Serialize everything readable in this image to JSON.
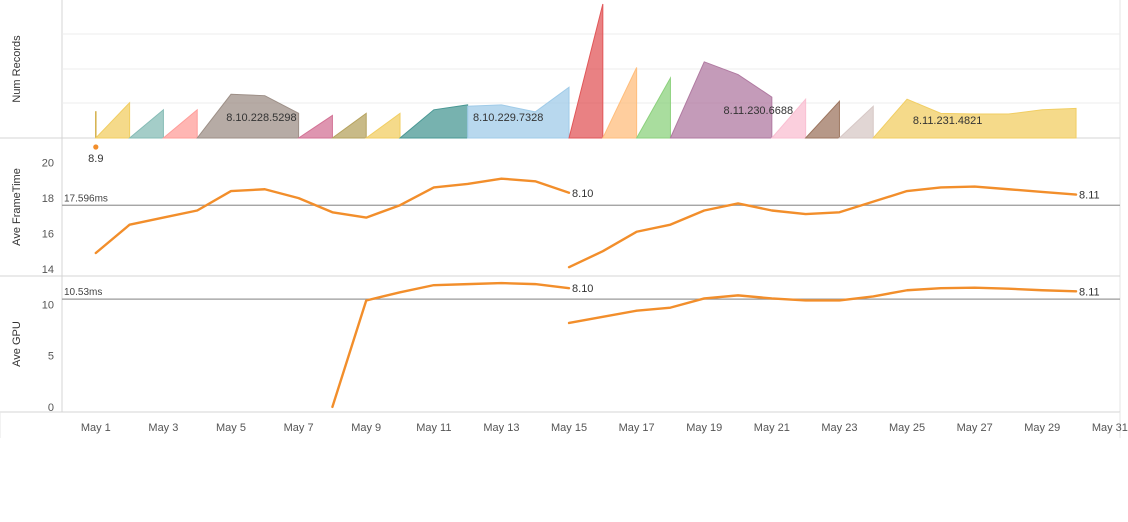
{
  "colors": {
    "line": "#f28e2b",
    "refline": "#9a9a9a",
    "grid": "#ececec",
    "frame": "#d4d4d4"
  },
  "chart_data": [
    {
      "id": "num-records",
      "type": "area",
      "ylabel": "Num Records",
      "x_unit": "day of May",
      "ylim": [
        0,
        190
      ],
      "series": [
        {
          "name": "8.9",
          "color": "#f28e2b",
          "points": [
            [
              1,
              9
            ]
          ],
          "style": "dot"
        },
        {
          "color": "#d4b04a",
          "points": [
            [
              1,
              38
            ]
          ],
          "style": "spike"
        },
        {
          "color": "#f1ce63",
          "points": [
            [
              1,
              0
            ],
            [
              2,
              50
            ]
          ]
        },
        {
          "color": "#86bcb6",
          "points": [
            [
              2,
              0
            ],
            [
              3,
              40
            ]
          ]
        },
        {
          "color": "#ff9d9a",
          "points": [
            [
              3,
              0
            ],
            [
              4,
              40
            ]
          ]
        },
        {
          "name": "8.10.228.5298",
          "color": "#9d8f87",
          "points": [
            [
              4,
              0
            ],
            [
              5,
              62
            ],
            [
              6,
              60
            ],
            [
              7,
              35
            ]
          ]
        },
        {
          "color": "#d37295",
          "points": [
            [
              7,
              0
            ],
            [
              8,
              32
            ]
          ]
        },
        {
          "color": "#b6a35f",
          "points": [
            [
              8,
              0
            ],
            [
              9,
              35
            ]
          ]
        },
        {
          "color": "#f1ce63",
          "points": [
            [
              9,
              0
            ],
            [
              10,
              35
            ]
          ]
        },
        {
          "color": "#499894",
          "points": [
            [
              10,
              0
            ],
            [
              11,
              40
            ],
            [
              12,
              47
            ]
          ]
        },
        {
          "name": "8.10.229.7328",
          "color": "#a0cbe8",
          "points": [
            [
              12,
              0
            ],
            [
              12,
              45
            ],
            [
              13,
              47
            ],
            [
              14,
              37
            ],
            [
              15,
              72
            ]
          ]
        },
        {
          "color": "#e15759",
          "points": [
            [
              15,
              0
            ],
            [
              16,
              190
            ]
          ]
        },
        {
          "color": "#ffbe7d",
          "points": [
            [
              16,
              0
            ],
            [
              17,
              100
            ]
          ]
        },
        {
          "color": "#8cd17d",
          "points": [
            [
              17,
              0
            ],
            [
              18,
              85
            ]
          ]
        },
        {
          "name": "8.11.230.6688",
          "color": "#b07aa1",
          "points": [
            [
              18,
              0
            ],
            [
              19,
              108
            ],
            [
              20,
              90
            ],
            [
              21,
              58
            ]
          ]
        },
        {
          "color": "#fabfd2",
          "points": [
            [
              21,
              0
            ],
            [
              22,
              55
            ]
          ]
        },
        {
          "color": "#9d7660",
          "points": [
            [
              22,
              0
            ],
            [
              23,
              52
            ]
          ]
        },
        {
          "color": "#d7c8c6",
          "points": [
            [
              23,
              0
            ],
            [
              24,
              45
            ]
          ]
        },
        {
          "name": "8.11.231.4821",
          "color": "#f1ce63",
          "points": [
            [
              24,
              0
            ],
            [
              25,
              55
            ],
            [
              26,
              35
            ],
            [
              27,
              34
            ],
            [
              28,
              34
            ],
            [
              29,
              40
            ],
            [
              30,
              42
            ]
          ]
        }
      ],
      "labels": [
        {
          "text": "8.9",
          "x": 1,
          "y": -24
        },
        {
          "text": "8.10.228.5298",
          "x": 5.9,
          "y": 17
        },
        {
          "text": "8.10.229.7328",
          "x": 13.2,
          "y": 17
        },
        {
          "text": "8.11.230.6688",
          "x": 20.6,
          "y": 24
        },
        {
          "text": "8.11.231.4821",
          "x": 26.2,
          "y": 14
        }
      ]
    },
    {
      "id": "ave-frametime",
      "type": "line",
      "ylabel": "Ave FrameTime",
      "x_unit": "day of May",
      "ylim": [
        13.6,
        21.0
      ],
      "yticks": [
        14,
        16,
        18,
        20
      ],
      "reference": {
        "value": 17.596,
        "label": "17.596ms"
      },
      "series": [
        {
          "name": "8.10",
          "points": [
            [
              1,
              14.9
            ],
            [
              2,
              16.5
            ],
            [
              3,
              16.9
            ],
            [
              4,
              17.3
            ],
            [
              5,
              18.4
            ],
            [
              6,
              18.5
            ],
            [
              7,
              18.0
            ],
            [
              8,
              17.2
            ],
            [
              9,
              16.9
            ],
            [
              10,
              17.6
            ],
            [
              11,
              18.6
            ],
            [
              12,
              18.8
            ],
            [
              13,
              19.1
            ],
            [
              14,
              18.95
            ],
            [
              15,
              18.3
            ]
          ]
        },
        {
          "name": "8.11",
          "points": [
            [
              15,
              14.1
            ],
            [
              16,
              15.0
            ],
            [
              17,
              16.1
            ],
            [
              18,
              16.5
            ],
            [
              19,
              17.3
            ],
            [
              20,
              17.7
            ],
            [
              21,
              17.3
            ],
            [
              22,
              17.1
            ],
            [
              23,
              17.2
            ],
            [
              24,
              17.8
            ],
            [
              25,
              18.4
            ],
            [
              26,
              18.6
            ],
            [
              27,
              18.65
            ],
            [
              28,
              18.5
            ],
            [
              29,
              18.35
            ],
            [
              30,
              18.2
            ]
          ]
        }
      ]
    },
    {
      "id": "ave-gpu",
      "type": "line",
      "ylabel": "Ave GPU",
      "x_unit": "day of May",
      "ylim": [
        -0.5,
        12.5
      ],
      "yticks": [
        0,
        5,
        10
      ],
      "reference": {
        "value": 10.53,
        "label": "10.53ms"
      },
      "series": [
        {
          "name": "8.10",
          "points": [
            [
              8,
              0
            ],
            [
              9,
              10.4
            ],
            [
              10,
              11.2
            ],
            [
              11,
              11.9
            ],
            [
              12,
              12.0
            ],
            [
              13,
              12.1
            ],
            [
              14,
              12.0
            ],
            [
              15,
              11.6
            ]
          ]
        },
        {
          "name": "8.11",
          "points": [
            [
              15,
              8.2
            ],
            [
              16,
              8.8
            ],
            [
              17,
              9.4
            ],
            [
              18,
              9.7
            ],
            [
              19,
              10.6
            ],
            [
              20,
              10.9
            ],
            [
              21,
              10.6
            ],
            [
              22,
              10.4
            ],
            [
              23,
              10.4
            ],
            [
              24,
              10.8
            ],
            [
              25,
              11.4
            ],
            [
              26,
              11.6
            ],
            [
              27,
              11.65
            ],
            [
              28,
              11.55
            ],
            [
              29,
              11.4
            ],
            [
              30,
              11.3
            ]
          ]
        }
      ]
    }
  ],
  "x_axis": {
    "range": [
      0,
      31.3
    ],
    "ticks": [
      {
        "day": 1,
        "label": "May 1"
      },
      {
        "day": 3,
        "label": "May 3"
      },
      {
        "day": 5,
        "label": "May 5"
      },
      {
        "day": 7,
        "label": "May 7"
      },
      {
        "day": 9,
        "label": "May 9"
      },
      {
        "day": 11,
        "label": "May 11"
      },
      {
        "day": 13,
        "label": "May 13"
      },
      {
        "day": 15,
        "label": "May 15"
      },
      {
        "day": 17,
        "label": "May 17"
      },
      {
        "day": 19,
        "label": "May 19"
      },
      {
        "day": 21,
        "label": "May 21"
      },
      {
        "day": 23,
        "label": "May 23"
      },
      {
        "day": 25,
        "label": "May 25"
      },
      {
        "day": 27,
        "label": "May 27"
      },
      {
        "day": 29,
        "label": "May 29"
      },
      {
        "day": 31,
        "label": "May 31"
      }
    ]
  }
}
